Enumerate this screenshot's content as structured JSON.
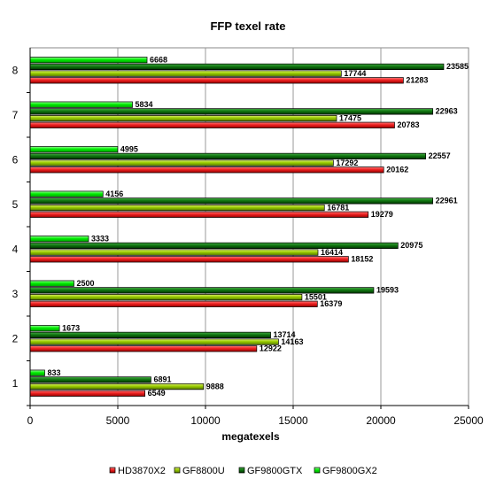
{
  "chart_data": {
    "type": "bar",
    "orientation": "horizontal",
    "title": "FFP texel rate",
    "xlabel": "megatexels",
    "ylabel": "",
    "xlim": [
      0,
      25000
    ],
    "xticks": [
      0,
      5000,
      10000,
      15000,
      20000,
      25000
    ],
    "grid": "vertical",
    "legend_position": "bottom",
    "categories": [
      "1",
      "2",
      "3",
      "4",
      "5",
      "6",
      "7",
      "8"
    ],
    "series": [
      {
        "name": "HD3870X2",
        "color": "#ee2222",
        "values": [
          6549,
          12922,
          16379,
          18152,
          19279,
          20162,
          20783,
          21283
        ]
      },
      {
        "name": "GF8800U",
        "color": "#99cc00",
        "values": [
          9888,
          14163,
          15501,
          16414,
          16781,
          17292,
          17475,
          17744
        ]
      },
      {
        "name": "GF9800GTX",
        "color": "#117711",
        "values": [
          6891,
          13714,
          19593,
          20975,
          22961,
          22557,
          22963,
          23585
        ]
      },
      {
        "name": "GF9800GX2",
        "color": "#00ee00",
        "values": [
          833,
          1673,
          2500,
          3333,
          4156,
          4995,
          5834,
          6668
        ]
      }
    ]
  }
}
